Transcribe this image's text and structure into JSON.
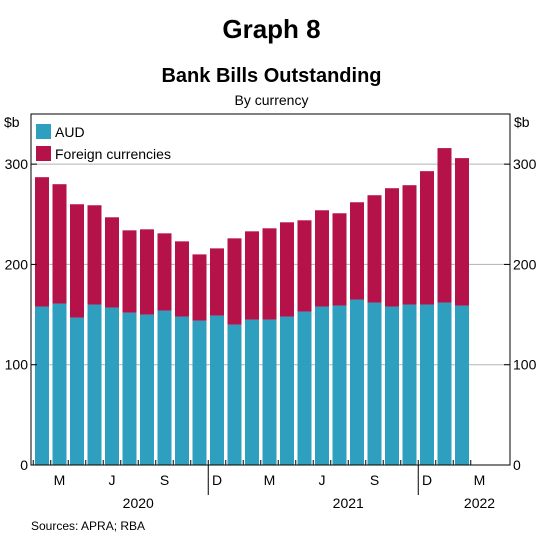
{
  "chart_data": {
    "type": "bar",
    "stacked": true,
    "graph_label": "Graph 8",
    "title": "Bank Bills Outstanding",
    "subtitle": "By currency",
    "ylabel_left": "$b",
    "ylabel_right": "$b",
    "ylim": [
      0,
      350
    ],
    "yticks": [
      0,
      100,
      200,
      300
    ],
    "grid": true,
    "legend_position": "top-left",
    "categories": [
      "2020-03",
      "2020-04",
      "2020-05",
      "2020-06",
      "2020-07",
      "2020-08",
      "2020-09",
      "2020-10",
      "2020-11",
      "2020-12",
      "2021-01",
      "2021-02",
      "2021-03",
      "2021-04",
      "2021-05",
      "2021-06",
      "2021-07",
      "2021-08",
      "2021-09",
      "2021-10",
      "2021-11",
      "2021-12",
      "2022-01",
      "2022-02",
      "2022-03"
    ],
    "series": [
      {
        "name": "AUD",
        "color": "#2f9fbf",
        "values": [
          158,
          161,
          147,
          160,
          157,
          152,
          150,
          154,
          148,
          144,
          149,
          140,
          145,
          145,
          148,
          153,
          158,
          159,
          165,
          162,
          158,
          160,
          160,
          162,
          159
        ]
      },
      {
        "name": "Foreign currencies",
        "color": "#b5124a",
        "values": [
          129,
          119,
          113,
          99,
          90,
          82,
          85,
          77,
          75,
          66,
          67,
          86,
          88,
          91,
          94,
          91,
          96,
          92,
          97,
          107,
          118,
          119,
          133,
          154,
          147
        ]
      }
    ],
    "x_ticks": [
      {
        "index": 1,
        "label": "M"
      },
      {
        "index": 4,
        "label": "J"
      },
      {
        "index": 7,
        "label": "S"
      },
      {
        "index": 10,
        "label": "D"
      },
      {
        "index": 13,
        "label": "M"
      },
      {
        "index": 16,
        "label": "J"
      },
      {
        "index": 19,
        "label": "S"
      },
      {
        "index": 22,
        "label": "D"
      },
      {
        "index": 25,
        "label": "M"
      }
    ],
    "year_labels": [
      {
        "index": 5.5,
        "label": "2020"
      },
      {
        "index": 17.5,
        "label": "2021"
      },
      {
        "index": 25,
        "label": "2022"
      }
    ],
    "source": "Sources: APRA; RBA"
  }
}
